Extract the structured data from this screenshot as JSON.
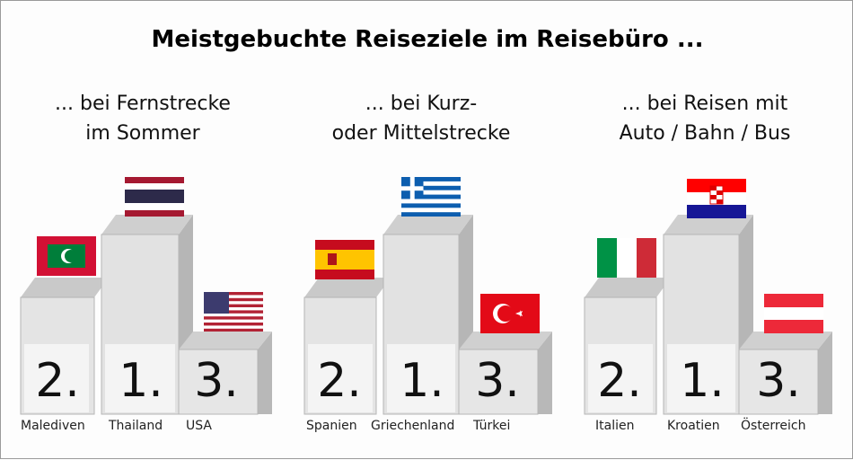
{
  "title": "Meistgebuchte Reiseziele im Reisebüro ...",
  "sections": [
    {
      "subtitle_line1": "... bei Fernstrecke",
      "subtitle_line2": "im Sommer",
      "podium": [
        {
          "rank": "2.",
          "country": "Malediven",
          "flag": "maldives-flag"
        },
        {
          "rank": "1.",
          "country": "Thailand",
          "flag": "thailand-flag"
        },
        {
          "rank": "3.",
          "country": "USA",
          "flag": "usa-flag"
        }
      ]
    },
    {
      "subtitle_line1": "... bei Kurz-",
      "subtitle_line2": "oder Mittelstrecke",
      "podium": [
        {
          "rank": "2.",
          "country": "Spanien",
          "flag": "spain-flag"
        },
        {
          "rank": "1.",
          "country": "Griechenland",
          "flag": "greece-flag"
        },
        {
          "rank": "3.",
          "country": "Türkei",
          "flag": "turkey-flag"
        }
      ]
    },
    {
      "subtitle_line1": "... bei Reisen mit",
      "subtitle_line2": "Auto / Bahn / Bus",
      "podium": [
        {
          "rank": "2.",
          "country": "Italien",
          "flag": "italy-flag"
        },
        {
          "rank": "1.",
          "country": "Kroatien",
          "flag": "croatia-flag"
        },
        {
          "rank": "3.",
          "country": "Österreich",
          "flag": "austria-flag"
        }
      ]
    }
  ]
}
